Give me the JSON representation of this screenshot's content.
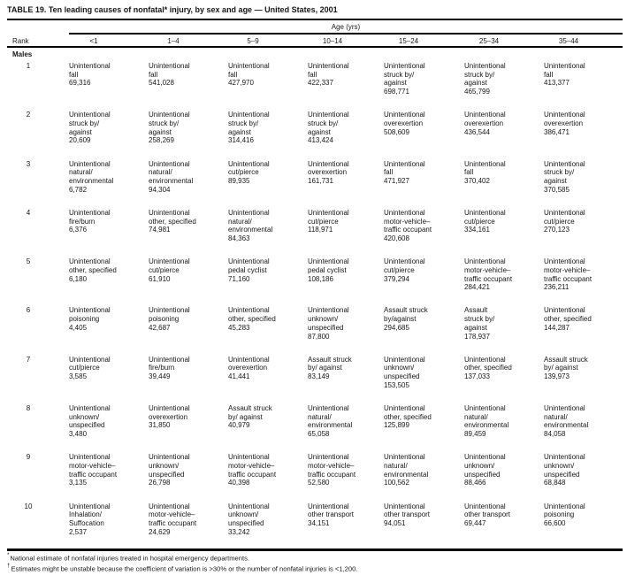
{
  "title": "TABLE 19. Ten leading causes of nonfatal* injury, by sex and age — United States, 2001",
  "header": {
    "age_group_label": "Age (yrs)",
    "rank_label": "Rank",
    "age_columns": [
      "<1",
      "1–4",
      "5–9",
      "10–14",
      "15–24",
      "25–34",
      "35–44"
    ]
  },
  "section_label": "Males",
  "rows": [
    {
      "rank": "1",
      "cells": [
        {
          "cause": "Unintentional\nfall",
          "value": "69,316"
        },
        {
          "cause": "Unintentional\nfall",
          "value": "541,028"
        },
        {
          "cause": "Unintentional\nfall",
          "value": "427,970"
        },
        {
          "cause": "Unintentional\nfall",
          "value": "422,337"
        },
        {
          "cause": "Unintentional\nstruck by/\nagainst",
          "value": "698,771"
        },
        {
          "cause": "Unintentional\nstruck by/\nagainst",
          "value": "465,799"
        },
        {
          "cause": "Unintentional\nfall",
          "value": "413,377"
        }
      ]
    },
    {
      "rank": "2",
      "cells": [
        {
          "cause": "Unintentional\nstruck by/\nagainst",
          "value": "20,609"
        },
        {
          "cause": "Unintentional\nstruck by/\nagainst",
          "value": "258,269"
        },
        {
          "cause": "Unintentional\nstruck by/\nagainst",
          "value": "314,416"
        },
        {
          "cause": "Unintentional\nstruck by/\nagainst",
          "value": "413,424"
        },
        {
          "cause": "Unintentional\noverexertion",
          "value": "508,609"
        },
        {
          "cause": "Unintentional\noverexertion",
          "value": "436,544"
        },
        {
          "cause": "Unintentional\noverexertion",
          "value": "386,471"
        }
      ]
    },
    {
      "rank": "3",
      "cells": [
        {
          "cause": "Unintentional\nnatural/\nenvironmental",
          "value": "6,782"
        },
        {
          "cause": "Unintentional\nnatural/\nenvironmental",
          "value": "94,304"
        },
        {
          "cause": "Unintentional\ncut/pierce",
          "value": "89,935"
        },
        {
          "cause": "Unintentional\noverexertion",
          "value": "161,731"
        },
        {
          "cause": "Unintentional\nfall",
          "value": "471,927"
        },
        {
          "cause": "Unintentional\nfall",
          "value": "370,402"
        },
        {
          "cause": "Unintentional\nstruck by/\nagainst",
          "value": "370,585"
        }
      ]
    },
    {
      "rank": "4",
      "cells": [
        {
          "cause": "Unintentional\nfire/burn",
          "value": "6,376"
        },
        {
          "cause": "Unintentional\nother, specified",
          "value": "74,981"
        },
        {
          "cause": "Unintentional\nnatural/\nenvironmental",
          "value": "84,363"
        },
        {
          "cause": "Unintentional\ncut/pierce",
          "value": "118,971"
        },
        {
          "cause": "Unintentional\nmotor-vehicle–\ntraffic occupant",
          "value": "420,608"
        },
        {
          "cause": "Unintentional\ncut/pierce",
          "value": "334,161"
        },
        {
          "cause": "Unintentional\ncut/pierce",
          "value": "270,123"
        }
      ]
    },
    {
      "rank": "5",
      "cells": [
        {
          "cause": "Unintentional\nother, specified",
          "value": "6,180"
        },
        {
          "cause": "Unintentional\ncut/pierce",
          "value": "61,910"
        },
        {
          "cause": "Unintentional\npedal cyclist",
          "value": "71,160"
        },
        {
          "cause": "Unintentional\npedal cyclist",
          "value": "108,186"
        },
        {
          "cause": "Unintentional\ncut/pierce",
          "value": "379,294"
        },
        {
          "cause": "Unintentional\nmotor-vehicle–\ntraffic occupant",
          "value": "284,421"
        },
        {
          "cause": "Unintentional\nmotor-vehicle–\ntraffic occupant",
          "value": "236,211"
        }
      ]
    },
    {
      "rank": "6",
      "cells": [
        {
          "cause": "Unintentional\npoisoning",
          "value": "4,405"
        },
        {
          "cause": "Unintentional\npoisoning",
          "value": "42,687"
        },
        {
          "cause": "Unintentional\nother, specified",
          "value": "45,283"
        },
        {
          "cause": "Unintentional\nunknown/\nunspecified",
          "value": "87,800"
        },
        {
          "cause": "Assault struck\nby/against",
          "value": "294,685"
        },
        {
          "cause": "Assault\nstruck by/\nagainst",
          "value": "178,937"
        },
        {
          "cause": "Unintentional\nother, specified",
          "value": "144,287"
        }
      ]
    },
    {
      "rank": "7",
      "cells": [
        {
          "cause": "Unintentional\ncut/pierce",
          "value": "3,585"
        },
        {
          "cause": "Unintentional\nfire/burn",
          "value": "39,449"
        },
        {
          "cause": "Unintentional\noverexertion",
          "value": "41,441"
        },
        {
          "cause": "Assault struck\nby/ against",
          "value": "83,149"
        },
        {
          "cause": "Unintentional\nunknown/\nunspecified",
          "value": "153,505"
        },
        {
          "cause": "Unintentional\nother, specified",
          "value": "137,033"
        },
        {
          "cause": "Assault struck\nby/ against",
          "value": "139,973"
        }
      ]
    },
    {
      "rank": "8",
      "cells": [
        {
          "cause": "Unintentional\nunknown/\nunspecified",
          "value": "3,480"
        },
        {
          "cause": "Unintentional\noverexertion",
          "value": "31,850"
        },
        {
          "cause": "Assault struck\nby/ against",
          "value": "40,979"
        },
        {
          "cause": "Unintentional\nnatural/\nenvironmental",
          "value": "65,058"
        },
        {
          "cause": "Unintentional\nother, specified",
          "value": "125,899"
        },
        {
          "cause": "Unintentional\nnatural/\nenvironmental",
          "value": "89,459"
        },
        {
          "cause": "Unintentional\nnatural/\nenvironmental",
          "value": "84,058"
        }
      ]
    },
    {
      "rank": "9",
      "cells": [
        {
          "cause": "Unintentional\nmotor-vehicle–\ntraffic occupant",
          "value": "3,135"
        },
        {
          "cause": "Unintentional\nunknown/\nunspecified",
          "value": "26,798"
        },
        {
          "cause": "Unintentional\nmotor-vehicle–\ntraffic occupant",
          "value": "40,398"
        },
        {
          "cause": "Unintentional\nmotor-vehicle–\ntraffic occupant",
          "value": "52,580"
        },
        {
          "cause": "Unintentional\nnatural/\nenvironmental",
          "value": "100,562"
        },
        {
          "cause": "Unintentional\nunknown/\nunspecified",
          "value": "88,466"
        },
        {
          "cause": "Unintentional\nunknown/\nunspecified",
          "value": "68,848"
        }
      ]
    },
    {
      "rank": "10",
      "cells": [
        {
          "cause": "Unintentional\nInhalation/\nSuffocation",
          "value": "2,537"
        },
        {
          "cause": "Unintentional\nmotor-vehicle–\ntraffic occupant",
          "value": "24,629"
        },
        {
          "cause": "Unintentional\nunknown/\nunspecified",
          "value": "33,242"
        },
        {
          "cause": "Unintentional\nother transport",
          "value": "34,151"
        },
        {
          "cause": "Unintentional\nother transport",
          "value": "94,051"
        },
        {
          "cause": "Unintentional\nother transport",
          "value": "69,447"
        },
        {
          "cause": "Unintentional\npoisoning",
          "value": "66,600"
        }
      ]
    }
  ],
  "footnotes": [
    {
      "marker": "*",
      "text": "National estimate of nonfatal injuries treated in hospital emergency departments."
    },
    {
      "marker": "†",
      "text": "Estimates might be unstable because the coefficient of variation is >30% or the number of nonfatal injuries is <1,200."
    }
  ]
}
